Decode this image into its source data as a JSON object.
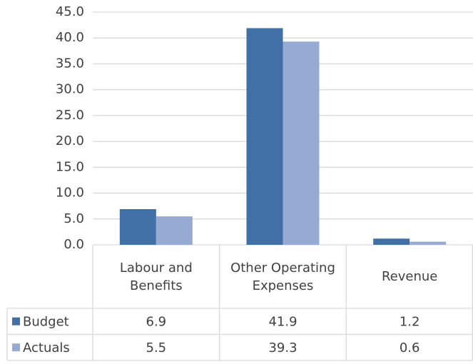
{
  "chart_data": {
    "type": "bar",
    "categories": [
      "Labour and Benefits",
      "Other Operating Expenses",
      "Revenue"
    ],
    "series": [
      {
        "name": "Budget",
        "color": "#4170a6",
        "values": [
          6.9,
          41.9,
          1.2
        ]
      },
      {
        "name": "Actuals",
        "color": "#96aad3",
        "values": [
          5.5,
          39.3,
          0.6
        ]
      }
    ],
    "ylim": [
      0,
      45
    ],
    "yticks": [
      {
        "value": 0,
        "label": "0.0"
      },
      {
        "value": 5,
        "label": "5.0"
      },
      {
        "value": 10,
        "label": "10.0"
      },
      {
        "value": 15,
        "label": "15.0"
      },
      {
        "value": 20,
        "label": "20.0"
      },
      {
        "value": 25,
        "label": "25.0"
      },
      {
        "value": 30,
        "label": "30.0"
      },
      {
        "value": 35,
        "label": "35.0"
      },
      {
        "value": 40,
        "label": "40.0"
      },
      {
        "value": 45,
        "label": "45.0"
      }
    ],
    "grid": true,
    "data_table": true
  }
}
